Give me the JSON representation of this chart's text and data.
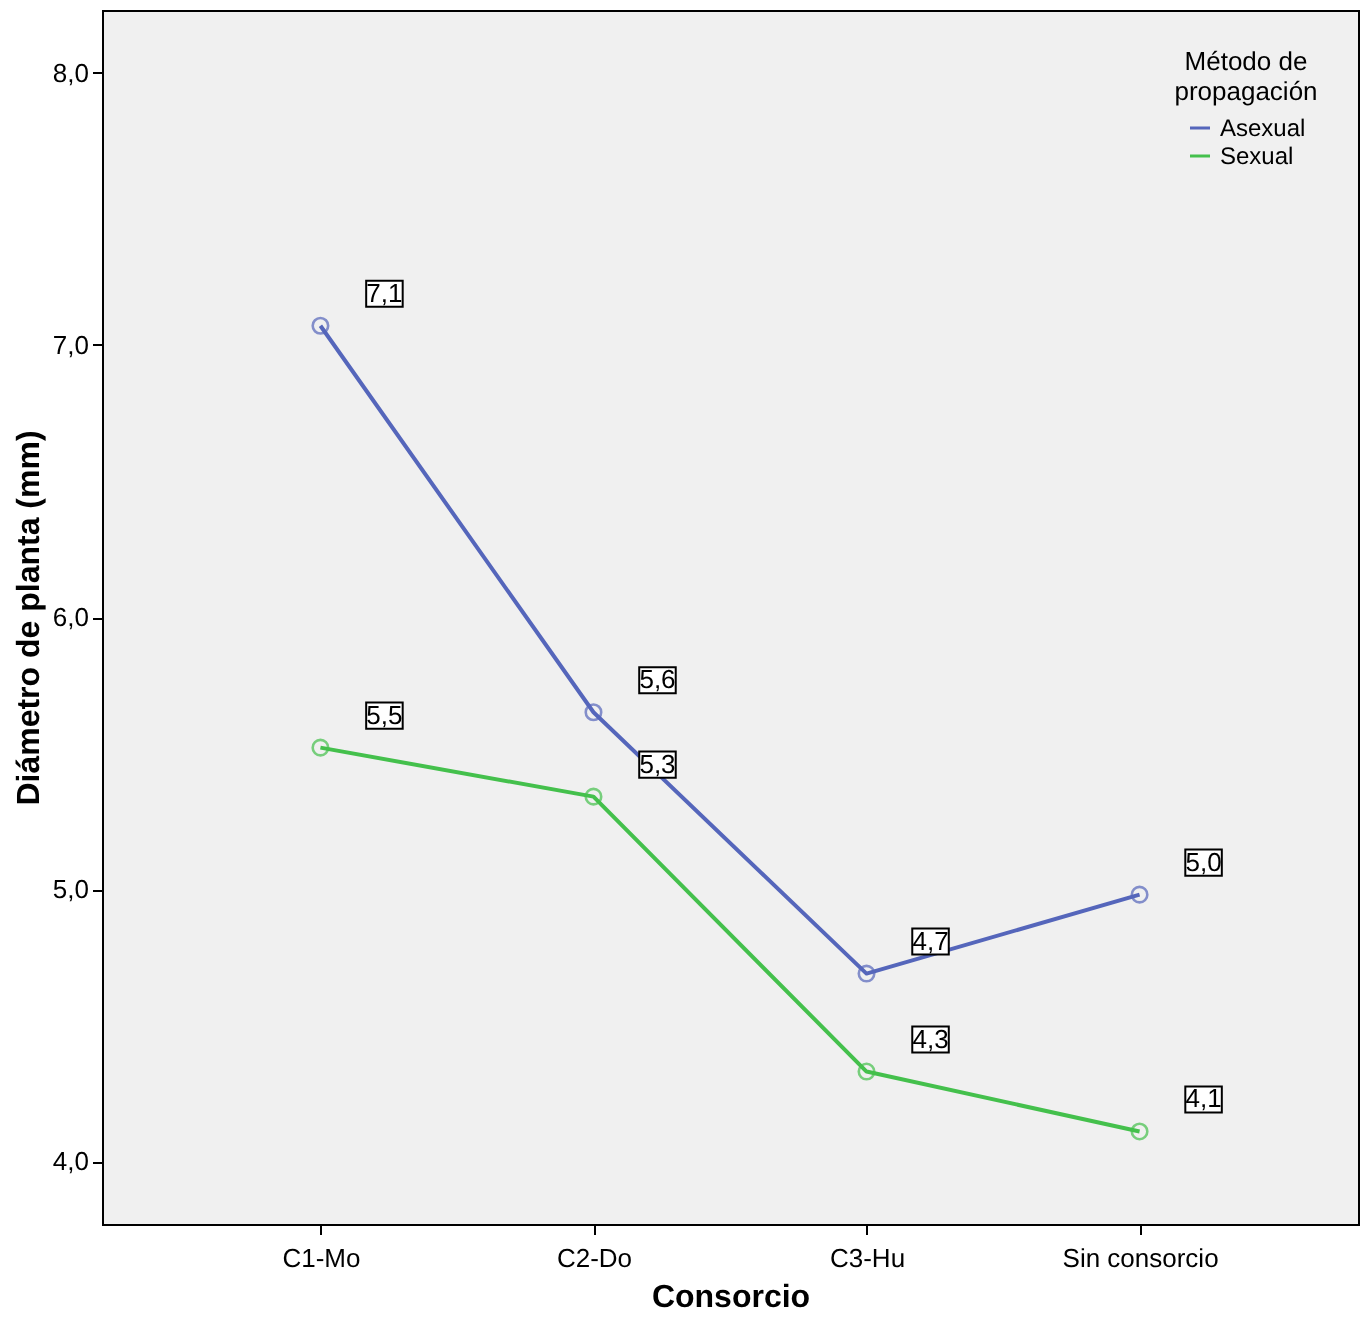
{
  "chart_data": {
    "type": "line",
    "xlabel": "Consorcio",
    "ylabel": "Diámetro de planta (mm)",
    "legend_title": "Método de propagación",
    "legend": "top right",
    "marker": "circle",
    "line_style": "solid",
    "grid": false,
    "categories": [
      "C1-Mo",
      "C2-Do",
      "C3-Hu",
      "Sin consorcio"
    ],
    "ylim": [
      3.77,
      8.23
    ],
    "yticks": [
      {
        "value": 4,
        "label": "4,0"
      },
      {
        "value": 5,
        "label": "5,0"
      },
      {
        "value": 6,
        "label": "6,0"
      },
      {
        "value": 7,
        "label": "7,0"
      },
      {
        "value": 8,
        "label": "8,0"
      }
    ],
    "series": [
      {
        "name": "Asexual",
        "color": "#5566bb",
        "values": [
          7.07,
          5.65,
          4.69,
          4.98
        ],
        "value_labels": [
          "7,1",
          "5,6",
          "4,7",
          "5,0"
        ]
      },
      {
        "name": "Sexual",
        "color": "#44c04c",
        "values": [
          5.52,
          5.34,
          4.33,
          4.11
        ],
        "value_labels": [
          "5,5",
          "5,3",
          "4,3",
          "4,1"
        ]
      }
    ]
  }
}
